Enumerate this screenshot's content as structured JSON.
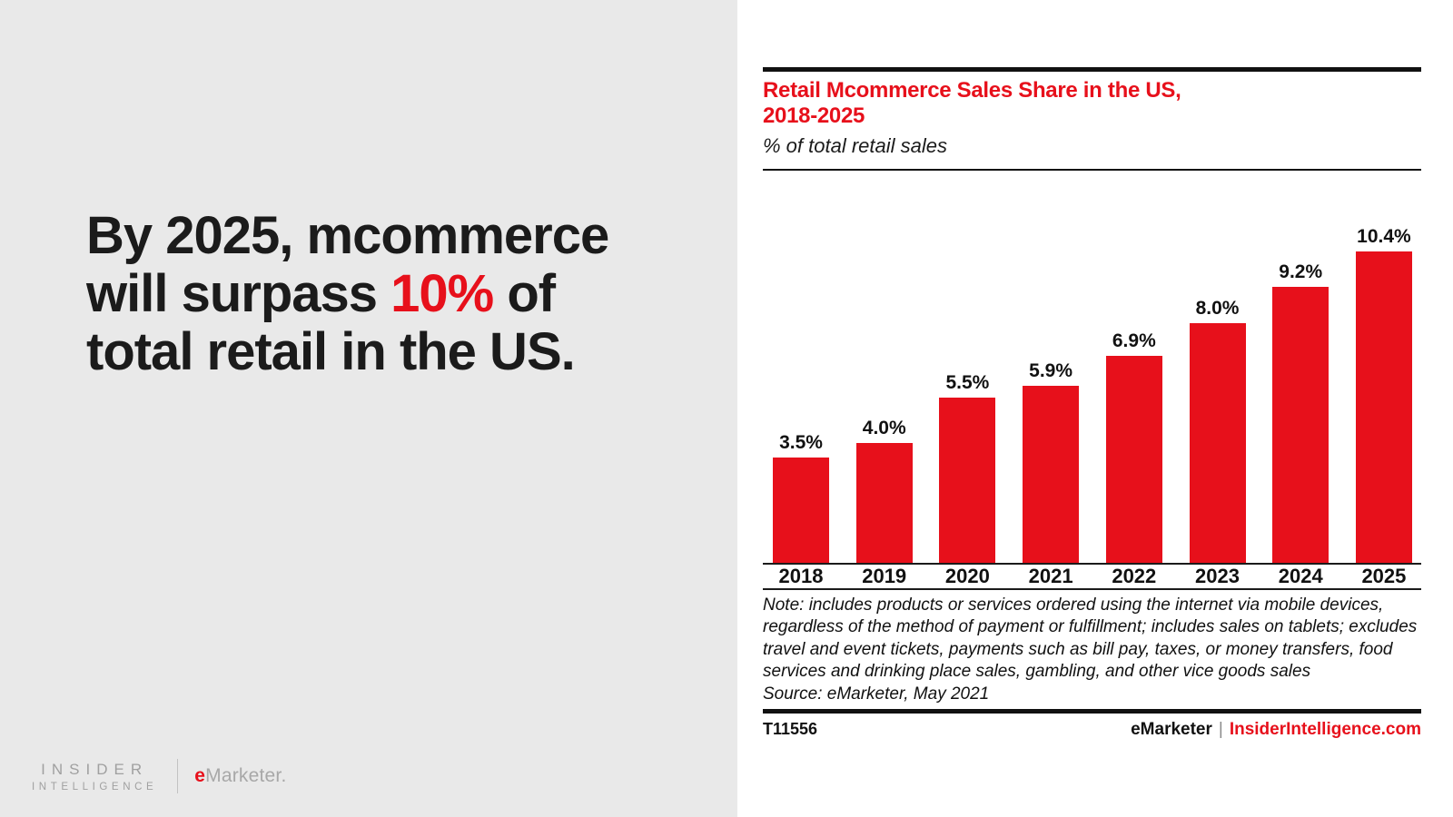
{
  "accent_red": "#e7101b",
  "left_panel": {
    "headline": {
      "line1": "By 2025, mcommerce",
      "line2_pre": "will surpass ",
      "line2_red": "10%",
      "line2_post": " of",
      "line3": "total retail in the US."
    },
    "logo": {
      "insider_line1": "INSIDER",
      "insider_line2": "INTELLIGENCE",
      "emarketer_e": "e",
      "emarketer_rest": "Marketer."
    }
  },
  "chart": {
    "title_line1": "Retail Mcommerce Sales Share in the US,",
    "title_line2": "2018-2025",
    "subtitle": "% of total retail sales",
    "note": "Note: includes products or services ordered using the internet via mobile devices, regardless of the method of payment or fulfillment; includes sales on tablets; excludes travel and event tickets, payments such as bill pay, taxes, or money transfers, food services and drinking place sales, gambling, and other vice goods sales",
    "source": "Source: eMarketer, May 2021",
    "footer": {
      "id": "T11556",
      "brand": "eMarketer",
      "divider": "|",
      "site": "InsiderIntelligence.com"
    }
  },
  "chart_data": {
    "type": "bar",
    "title": "Retail Mcommerce Sales Share in the US, 2018-2025",
    "ylabel": "% of total retail sales",
    "categories": [
      "2018",
      "2019",
      "2020",
      "2021",
      "2022",
      "2023",
      "2024",
      "2025"
    ],
    "values": [
      3.5,
      4.0,
      5.5,
      5.9,
      6.9,
      8.0,
      9.2,
      10.4
    ],
    "labels": [
      "3.5%",
      "4.0%",
      "5.5%",
      "5.9%",
      "6.9%",
      "8.0%",
      "9.2%",
      "10.4%"
    ],
    "ylim": [
      0,
      11
    ],
    "grid": false,
    "legend": "none",
    "bar_color": "#e7101b"
  }
}
